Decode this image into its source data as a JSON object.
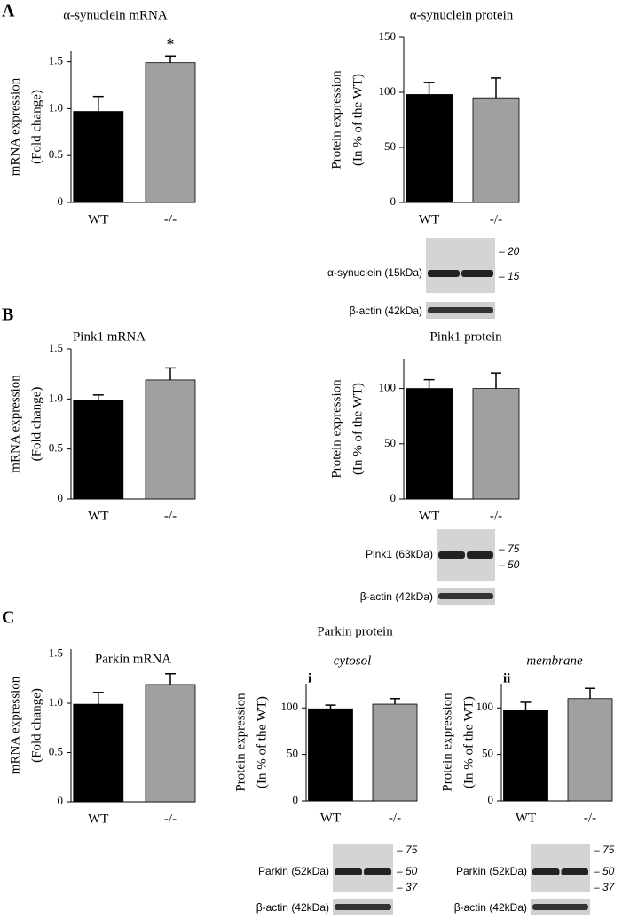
{
  "panels": [
    "A",
    "B",
    "C"
  ],
  "group_title": "Parkin protein",
  "chart_data": [
    {
      "type": "bar",
      "title": "α-synuclein mRNA",
      "ylabel": [
        "mRNA expression",
        "(Fold change)"
      ],
      "categories": [
        "WT",
        "-/-"
      ],
      "values": [
        0.97,
        1.49
      ],
      "errors": [
        0.16,
        0.07
      ],
      "colors": [
        "#000000",
        "#a0a0a0"
      ],
      "ylim": [
        0,
        1.61
      ],
      "yticks": [
        0,
        0.5,
        {
          "value": 1,
          "label": "1.0"
        },
        1.5
      ],
      "annotation": "*"
    },
    {
      "type": "bar",
      "title": "α-synuclein protein",
      "ylabel": [
        "Protein expression",
        "(In % of the WT)"
      ],
      "categories": [
        "WT",
        "-/-"
      ],
      "values": [
        98,
        95
      ],
      "errors": [
        11,
        18
      ],
      "colors": [
        "#000000",
        "#a0a0a0"
      ],
      "ylim": [
        0,
        150
      ],
      "yticks": [
        0,
        50,
        100,
        150
      ]
    },
    {
      "type": "bar",
      "title": "Pink1 mRNA",
      "ylabel": [
        "mRNA expression",
        "(Fold change)"
      ],
      "categories": [
        "WT",
        "-/-"
      ],
      "values": [
        0.99,
        1.19
      ],
      "errors": [
        0.05,
        0.12
      ],
      "colors": [
        "#000000",
        "#a0a0a0"
      ],
      "ylim": [
        0,
        1.5
      ],
      "yticks": [
        0,
        0.5,
        {
          "value": 1,
          "label": "1.0"
        },
        1.5
      ]
    },
    {
      "type": "bar",
      "title": "Pink1 protein",
      "ylabel": [
        "Protein expression",
        "(In % of the WT)"
      ],
      "categories": [
        "WT",
        "-/-"
      ],
      "values": [
        100,
        100
      ],
      "errors": [
        8,
        14
      ],
      "colors": [
        "#000000",
        "#a0a0a0"
      ],
      "ylim": [
        0,
        127
      ],
      "yticks": [
        0,
        50,
        100
      ]
    },
    {
      "type": "bar",
      "title": "Parkin mRNA",
      "ylabel": [
        "mRNA expression",
        "(Fold change)"
      ],
      "categories": [
        "WT",
        "-/-"
      ],
      "values": [
        0.99,
        1.19
      ],
      "errors": [
        0.12,
        0.11
      ],
      "colors": [
        "#000000",
        "#a0a0a0"
      ],
      "ylim": [
        0,
        1.55
      ],
      "yticks": [
        0,
        0.5,
        {
          "value": 1,
          "label": "1.0"
        },
        1.5
      ]
    },
    {
      "type": "bar",
      "title": "cytosol",
      "label": "i",
      "ylabel": [
        "Protein expression",
        "(In % of the WT)"
      ],
      "categories": [
        "WT",
        "-/-"
      ],
      "values": [
        99,
        104
      ],
      "errors": [
        4,
        6
      ],
      "colors": [
        "#000000",
        "#a0a0a0"
      ],
      "ylim": [
        0,
        126
      ],
      "yticks": [
        0,
        50,
        100
      ]
    },
    {
      "type": "bar",
      "title": "membrane",
      "label": "ii",
      "ylabel": [
        "Protein expression",
        "(In % of the WT)"
      ],
      "categories": [
        "WT",
        "-/-"
      ],
      "values": [
        97,
        110
      ],
      "errors": [
        9,
        11
      ],
      "colors": [
        "#000000",
        "#a0a0a0"
      ],
      "ylim": [
        0,
        126
      ],
      "yticks": [
        0,
        50,
        100
      ]
    }
  ],
  "blots": [
    {
      "label": "α-synuclein (15kDa)",
      "markers": [
        "– 20",
        "– 15"
      ],
      "actin": "β-actin (42kDa)"
    },
    {
      "label": "Pink1 (63kDa)",
      "markers": [
        "– 75",
        "– 50"
      ],
      "actin": "β-actin (42kDa)"
    },
    {
      "label": "Parkin (52kDa)",
      "markers": [
        "– 75",
        "– 50",
        "– 37"
      ],
      "actin": "β-actin (42kDa)"
    },
    {
      "label": "Parkin (52kDa)",
      "markers": [
        "– 75",
        "– 50",
        "– 37"
      ],
      "actin": "β-actin (42kDa)"
    }
  ]
}
